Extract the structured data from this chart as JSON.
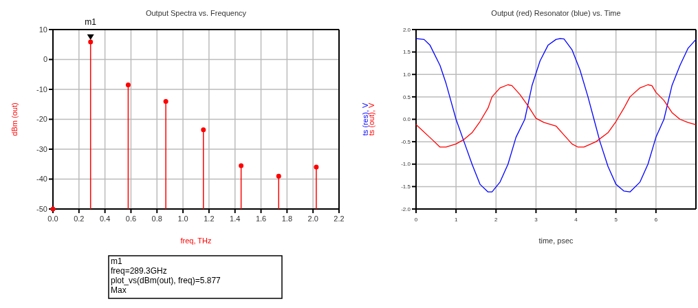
{
  "chart_data": [
    {
      "type": "scatter",
      "title": "Output Spectra vs. Frequency",
      "xlabel": "freq, THz",
      "ylabel": "dBm (out)",
      "x": [
        0,
        0.2893,
        0.5786,
        0.868,
        1.157,
        1.447,
        1.736,
        2.025
      ],
      "series": [
        {
          "color": "#ff0000",
          "values": [
            -50,
            5.877,
            -8.5,
            -14,
            -23.5,
            -35.5,
            -39,
            -36
          ],
          "marker": "circle",
          "errors": [
            null,
            [
              -50,
              5.877
            ],
            [
              -50,
              -8.5
            ],
            [
              -50,
              -14
            ],
            [
              -50,
              -23.5
            ],
            [
              -50,
              -35.5
            ],
            [
              -50,
              -39
            ],
            [
              -50,
              -36
            ]
          ]
        }
      ],
      "xlim": [
        0,
        2.2
      ],
      "ylim": [
        -50,
        10
      ],
      "xticks": [
        {
          "value": 0,
          "label": "0.0"
        },
        0.2,
        0.4,
        0.6,
        0.8,
        {
          "value": 1,
          "label": "1.0"
        },
        1.2,
        1.4,
        1.6,
        1.8,
        {
          "value": 2,
          "label": "2.0"
        },
        2.2
      ],
      "yticks": [
        -50,
        -40,
        -30,
        -20,
        -10,
        0,
        10
      ],
      "grid": true,
      "annotations": [
        "m1",
        "m1\nfreq=289.3GHz\nplot_vs(dBm(out), freq)=5.877\nMax"
      ]
    },
    {
      "type": "line",
      "title": "Output (red) Resonator (blue) vs. Time",
      "xlabel": "time, psec",
      "series": [
        {
          "name": "ts (res), V",
          "color": "#0000ff",
          "x": [
            0,
            0.2,
            0.35,
            0.6,
            0.75,
            1.0,
            1.2,
            1.4,
            1.6,
            1.8,
            1.9,
            2.1,
            2.3,
            2.5,
            2.72,
            2.9,
            3.1,
            3.3,
            3.5,
            3.6,
            3.7,
            3.9,
            4.1,
            4.3,
            4.45,
            4.6,
            4.8,
            5.0,
            5.2,
            5.35,
            5.6,
            5.8,
            6.0,
            6.2,
            6.4,
            6.6,
            6.8,
            7.0
          ],
          "values": [
            1.8,
            1.78,
            1.65,
            1.2,
            0.8,
            0.0,
            -0.5,
            -1.0,
            -1.45,
            -1.62,
            -1.62,
            -1.4,
            -1.0,
            -0.4,
            0.0,
            0.75,
            1.3,
            1.65,
            1.78,
            1.8,
            1.79,
            1.55,
            1.1,
            0.5,
            0.0,
            -0.5,
            -1.05,
            -1.45,
            -1.6,
            -1.62,
            -1.4,
            -1.0,
            -0.4,
            0.0,
            0.75,
            1.2,
            1.58,
            1.78
          ]
        },
        {
          "name": "ts (out), V",
          "color": "#ff0000",
          "x": [
            0,
            0.4,
            0.6,
            0.75,
            1.0,
            1.2,
            1.4,
            1.6,
            1.8,
            1.9,
            2.1,
            2.3,
            2.4,
            2.6,
            2.8,
            3.0,
            3.2,
            3.5,
            3.7,
            3.9,
            4.05,
            4.2,
            4.5,
            4.8,
            5.0,
            5.2,
            5.35,
            5.6,
            5.8,
            5.9,
            6.0,
            6.2,
            6.4,
            6.6,
            6.8,
            7.0
          ],
          "values": [
            -0.12,
            -0.45,
            -0.62,
            -0.62,
            -0.55,
            -0.45,
            -0.3,
            -0.05,
            0.25,
            0.5,
            0.7,
            0.77,
            0.75,
            0.55,
            0.3,
            0.02,
            -0.07,
            -0.15,
            -0.35,
            -0.55,
            -0.62,
            -0.62,
            -0.5,
            -0.3,
            -0.05,
            0.25,
            0.5,
            0.7,
            0.77,
            0.75,
            0.6,
            0.42,
            0.15,
            0.0,
            -0.07,
            -0.12
          ]
        }
      ],
      "xlim": [
        0,
        7
      ],
      "ylim": [
        -2,
        2
      ],
      "xticks": [
        0,
        1,
        2,
        3,
        4,
        5,
        6
      ],
      "yticks": [
        {
          "value": -2,
          "label": "-2.0"
        },
        -1.5,
        {
          "value": -1,
          "label": "-1.0"
        },
        -0.5,
        {
          "value": 0,
          "label": "0.0"
        },
        0.5,
        {
          "value": 1,
          "label": "1.0"
        },
        1.5,
        {
          "value": 2,
          "label": "2.0"
        }
      ],
      "grid": true
    }
  ]
}
